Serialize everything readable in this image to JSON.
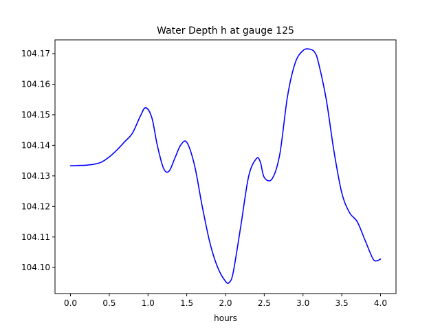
{
  "chart_data": {
    "type": "line",
    "title": "Water Depth h at gauge 125",
    "xlabel": "hours",
    "ylabel": "",
    "xlim": [
      -0.2,
      4.2
    ],
    "ylim": [
      104.0915,
      104.1745
    ],
    "x_ticks": [
      0.0,
      0.5,
      1.0,
      1.5,
      2.0,
      2.5,
      3.0,
      3.5,
      4.0
    ],
    "x_tick_labels": [
      "0.0",
      "0.5",
      "1.0",
      "1.5",
      "2.0",
      "2.5",
      "3.0",
      "3.5",
      "4.0"
    ],
    "y_ticks": [
      104.1,
      104.11,
      104.12,
      104.13,
      104.14,
      104.15,
      104.16,
      104.17
    ],
    "y_tick_labels": [
      "104.10",
      "104.11",
      "104.12",
      "104.13",
      "104.14",
      "104.15",
      "104.16",
      "104.17"
    ],
    "grid": false,
    "legend": "none",
    "series": [
      {
        "color": "#0000ff",
        "x": [
          0.0,
          0.1,
          0.2,
          0.3,
          0.4,
          0.5,
          0.6,
          0.7,
          0.8,
          0.9,
          0.97,
          1.05,
          1.12,
          1.2,
          1.27,
          1.35,
          1.42,
          1.5,
          1.6,
          1.7,
          1.8,
          1.9,
          2.0,
          2.05,
          2.1,
          2.2,
          2.3,
          2.4,
          2.45,
          2.5,
          2.6,
          2.7,
          2.8,
          2.9,
          3.0,
          3.08,
          3.15,
          3.2,
          3.3,
          3.4,
          3.5,
          3.6,
          3.7,
          3.8,
          3.9,
          3.95,
          4.0
        ],
        "y": [
          104.1333,
          104.1334,
          104.1335,
          104.1338,
          104.1345,
          104.1362,
          104.1385,
          104.1412,
          104.144,
          104.1495,
          104.1523,
          104.149,
          104.14,
          104.1325,
          104.1315,
          104.136,
          104.14,
          104.141,
          104.1335,
          104.12,
          104.108,
          104.1,
          104.0955,
          104.0952,
          104.0985,
          104.114,
          104.13,
          104.1357,
          104.1345,
          104.1295,
          104.129,
          104.137,
          104.156,
          104.167,
          104.171,
          104.1715,
          104.1705,
          104.167,
          104.155,
          104.138,
          104.1245,
          104.118,
          104.115,
          104.109,
          104.103,
          104.1022,
          104.1028
        ]
      }
    ]
  }
}
